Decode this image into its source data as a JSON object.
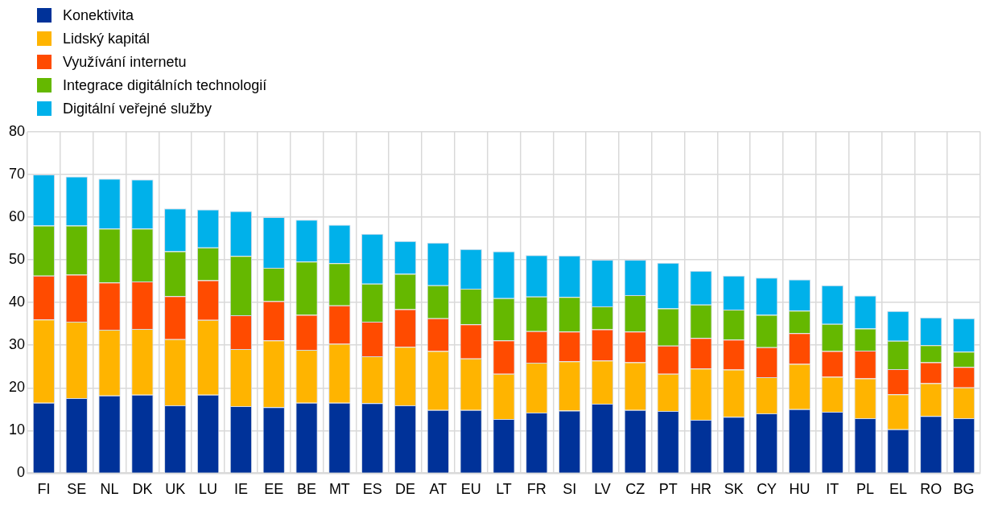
{
  "chart_data": {
    "type": "bar",
    "stacked": true,
    "categories": [
      "FI",
      "SE",
      "NL",
      "DK",
      "UK",
      "LU",
      "IE",
      "EE",
      "BE",
      "MT",
      "ES",
      "DE",
      "AT",
      "EU",
      "LT",
      "FR",
      "SI",
      "LV",
      "CZ",
      "PT",
      "HR",
      "SK",
      "CY",
      "HU",
      "IT",
      "PL",
      "EL",
      "RO",
      "BG"
    ],
    "series": [
      {
        "name": "Konektivita",
        "color": "#003299",
        "values": [
          16.5,
          17.6,
          18.2,
          18.4,
          15.9,
          18.4,
          15.7,
          15.5,
          16.5,
          16.5,
          16.4,
          15.9,
          14.8,
          14.8,
          12.7,
          14.2,
          14.7,
          16.3,
          14.8,
          14.6,
          12.5,
          13.2,
          14,
          15,
          14.4,
          12.9,
          10.3,
          13.4,
          12.9
        ]
      },
      {
        "name": "Lidský kapitál",
        "color": "#ffb400",
        "values": [
          19.5,
          17.9,
          15.4,
          15.4,
          15.5,
          17.5,
          13.4,
          15.6,
          12.4,
          13.8,
          11,
          13.7,
          13.8,
          12.1,
          10.6,
          11.7,
          11.5,
          10.1,
          11.2,
          8.7,
          12,
          11.1,
          8.5,
          10.6,
          8.2,
          9.3,
          8.2,
          7.7,
          7.2
        ]
      },
      {
        "name": "Využívání internetu",
        "color": "#ff4b00",
        "values": [
          10.3,
          11,
          11.1,
          11.1,
          10.1,
          9.3,
          7.9,
          9.2,
          8.2,
          9,
          8.1,
          8.8,
          7.7,
          8,
          7.8,
          7.4,
          7,
          7.3,
          7.2,
          6.6,
          7.2,
          7,
          7,
          7.2,
          6,
          6.5,
          5.9,
          4.9,
          4.8
        ]
      },
      {
        "name": "Integrace digitálních technologií",
        "color": "#65b800",
        "values": [
          11.7,
          11.5,
          12.6,
          12.4,
          10.5,
          7.7,
          13.9,
          7.8,
          12.5,
          9.9,
          8.9,
          8.3,
          7.7,
          8.3,
          9.9,
          8.1,
          8.1,
          5.4,
          8.5,
          8.7,
          7.8,
          7,
          7.6,
          5.3,
          6.4,
          5.2,
          6.6,
          4,
          3.6
        ]
      },
      {
        "name": "Digitální veřejné služby",
        "color": "#00b1ea",
        "values": [
          12,
          11.5,
          11.7,
          11.5,
          10,
          8.9,
          10.5,
          11.9,
          9.8,
          9,
          11.7,
          7.7,
          10,
          9.3,
          11,
          9.7,
          9.7,
          10.9,
          8.3,
          10.7,
          7.9,
          8,
          8.7,
          7.3,
          9,
          7.7,
          7,
          6.5,
          7.8
        ]
      }
    ],
    "ylim": [
      0,
      80
    ],
    "yticks": [
      0,
      10,
      20,
      30,
      40,
      50,
      60,
      70,
      80
    ],
    "grid": true,
    "legend": "top left"
  }
}
